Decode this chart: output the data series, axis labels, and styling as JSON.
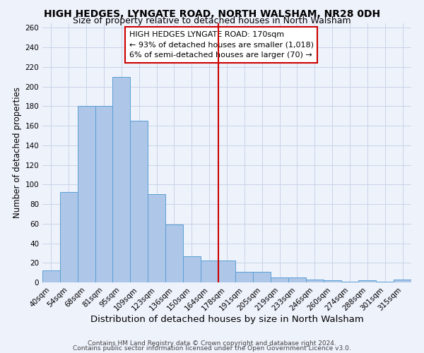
{
  "title": "HIGH HEDGES, LYNGATE ROAD, NORTH WALSHAM, NR28 0DH",
  "subtitle": "Size of property relative to detached houses in North Walsham",
  "xlabel": "Distribution of detached houses by size in North Walsham",
  "ylabel": "Number of detached properties",
  "footer_line1": "Contains HM Land Registry data © Crown copyright and database right 2024.",
  "footer_line2": "Contains public sector information licensed under the Open Government Licence v3.0.",
  "bar_labels": [
    "40sqm",
    "54sqm",
    "68sqm",
    "81sqm",
    "95sqm",
    "109sqm",
    "123sqm",
    "136sqm",
    "150sqm",
    "164sqm",
    "178sqm",
    "191sqm",
    "205sqm",
    "219sqm",
    "233sqm",
    "246sqm",
    "260sqm",
    "274sqm",
    "288sqm",
    "301sqm",
    "315sqm"
  ],
  "bar_values": [
    12,
    92,
    180,
    180,
    210,
    165,
    90,
    59,
    27,
    22,
    22,
    11,
    11,
    5,
    5,
    3,
    2,
    1,
    2,
    1,
    3
  ],
  "bar_color": "#aec6e8",
  "bar_edge_color": "#5a9fd4",
  "ylim": [
    0,
    265
  ],
  "yticks": [
    0,
    20,
    40,
    60,
    80,
    100,
    120,
    140,
    160,
    180,
    200,
    220,
    240,
    260
  ],
  "vline_x": 9.5,
  "vline_color": "#cc0000",
  "annotation_title": "HIGH HEDGES LYNGATE ROAD: 170sqm",
  "annotation_line1": "← 93% of detached houses are smaller (1,018)",
  "annotation_line2": "6% of semi-detached houses are larger (70) →",
  "background_color": "#eef2fb",
  "grid_color": "#c8d4e8",
  "title_fontsize": 10,
  "subtitle_fontsize": 9,
  "xlabel_fontsize": 9.5,
  "ylabel_fontsize": 8.5,
  "tick_fontsize": 7.5,
  "annotation_fontsize": 8,
  "footer_fontsize": 6.5
}
